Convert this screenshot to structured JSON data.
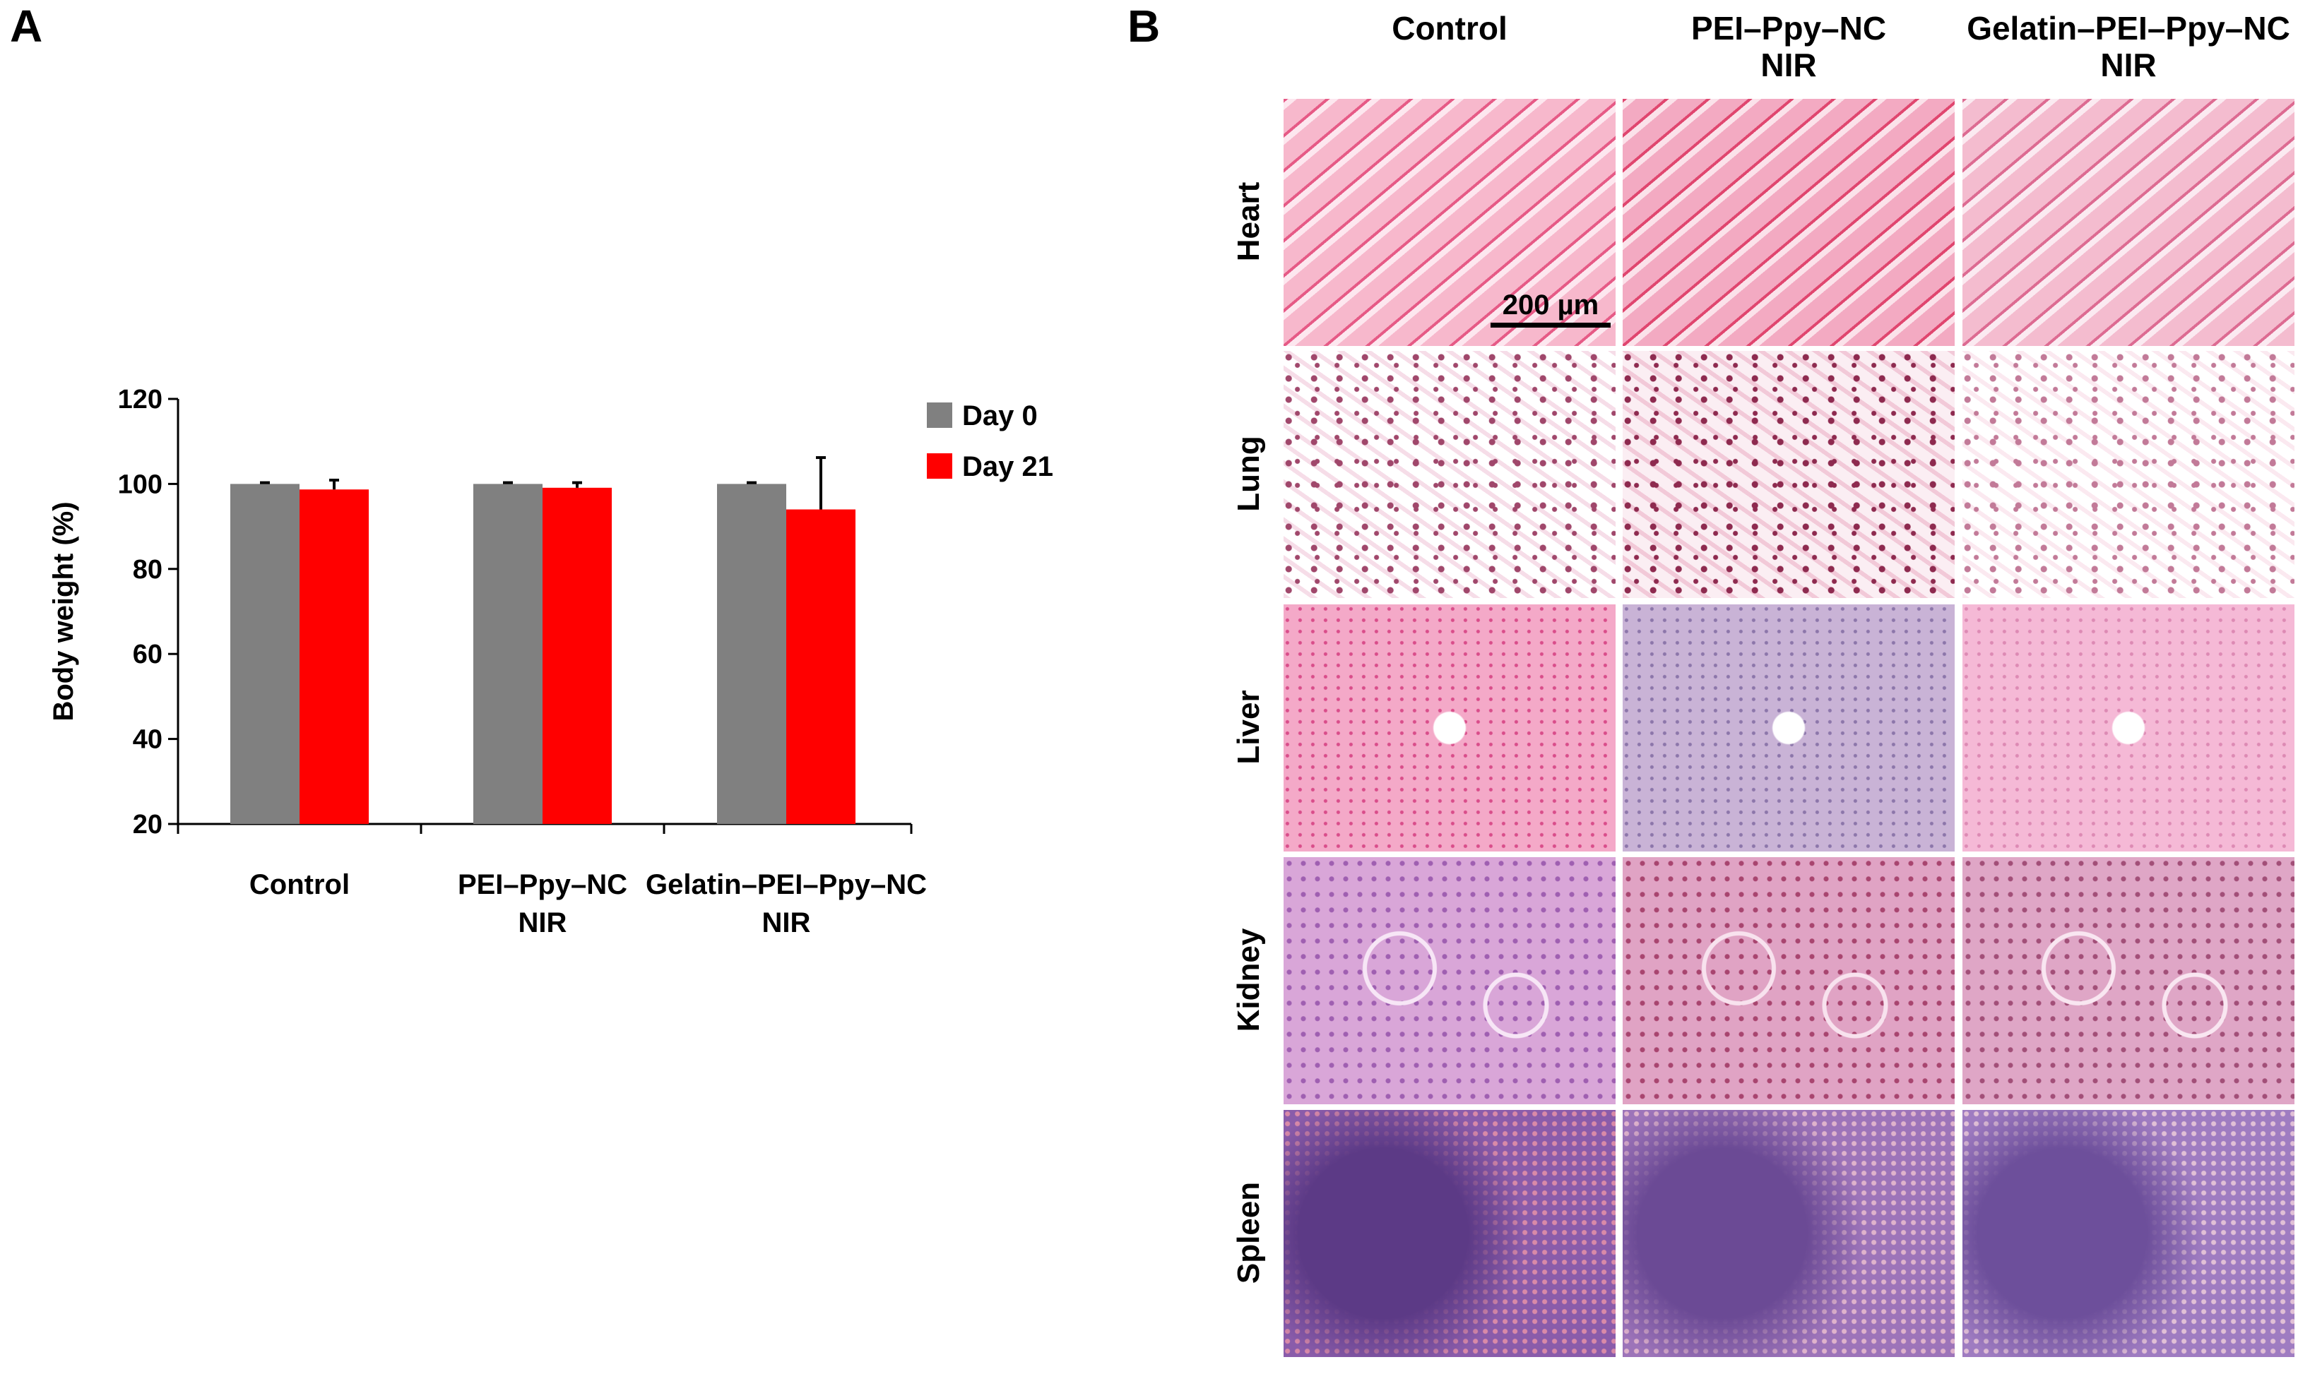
{
  "panels": {
    "a": "A",
    "b": "B"
  },
  "chart_data": {
    "type": "bar",
    "categories": [
      [
        "Control"
      ],
      [
        "PEI–Ppy–NC",
        "NIR"
      ],
      [
        "Gelatin–PEI–Ppy–NC",
        "NIR"
      ]
    ],
    "series": [
      {
        "name": "Day 0",
        "color": "#808080",
        "values": [
          100,
          100,
          100
        ],
        "errors": [
          0.3,
          0.3,
          0.3
        ]
      },
      {
        "name": "Day 21",
        "color": "#ff0000",
        "values": [
          98.7,
          99.1,
          94
        ],
        "errors": [
          2.2,
          1.2,
          12.2
        ]
      }
    ],
    "ylabel": "Body weight (%)",
    "xlabel": "",
    "ylim": [
      20,
      120
    ],
    "yticks": [
      20,
      40,
      60,
      80,
      100,
      120
    ],
    "legend_position": "top-right",
    "grid": false
  },
  "histology": {
    "columns": [
      [
        "Control"
      ],
      [
        "PEI–Ppy–NC",
        "NIR"
      ],
      [
        "Gelatin–PEI–Ppy–NC",
        "NIR"
      ]
    ],
    "rows": [
      "Heart",
      "Lung",
      "Liver",
      "Kidney",
      "Spleen"
    ],
    "scale_bar": "200 µm"
  }
}
